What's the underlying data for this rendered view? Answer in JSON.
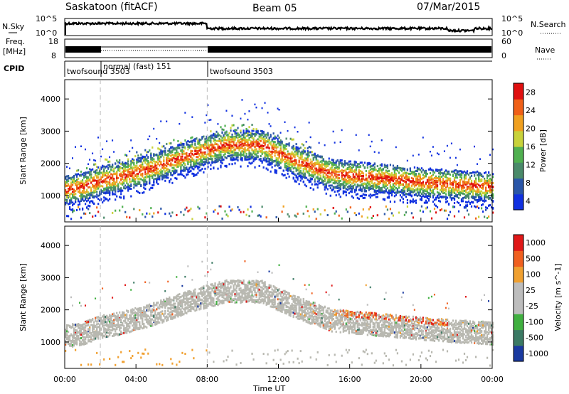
{
  "header": {
    "station": "Saskatoon (fitACF)",
    "beam": "Beam 05",
    "date": "07/Mar/2015"
  },
  "status_panels": {
    "nsky_label": "N.Sky",
    "nsearch_label": "N.Search",
    "freq_label_line1": "Freq.",
    "freq_label_line2": "[MHz]",
    "nave_label": "Nave",
    "cpid_label": "CPID",
    "noise_ticks": [
      "10^5",
      "10^0"
    ],
    "noise_ticks_right": [
      "10^5",
      "10^0"
    ],
    "freq_ticks": [
      "18",
      "8"
    ],
    "nave_ticks": [
      "60",
      "0"
    ],
    "cpid_segments": [
      {
        "name": "twofsound 3503",
        "start_hour": 0,
        "end_hour": 2
      },
      {
        "name": "normal (fast) 151",
        "start_hour": 2,
        "end_hour": 8
      },
      {
        "name": "twofsound 3503",
        "start_hour": 8,
        "end_hour": 24
      }
    ]
  },
  "colors": {
    "power_scale": [
      "#1030e0",
      "#2a56a8",
      "#4a8a6a",
      "#50b050",
      "#c8d23a",
      "#f0a020",
      "#f06018",
      "#e01010"
    ],
    "velocity_scale": [
      "#e01818",
      "#f06020",
      "#f0a030",
      "#bdbdbd",
      "#bdbdbd",
      "#40b040",
      "#3b7a64",
      "#1a3aa0"
    ],
    "gs_grey": "#b8b8b0"
  },
  "chart_data": [
    {
      "type": "heatmap",
      "panel": "power",
      "ylabel": "Slant Range [km]",
      "xlabel": "",
      "colorbar_label": "Power [dB]",
      "colorbar_ticks": [
        "28",
        "24",
        "20",
        "16",
        "12",
        "8",
        "4"
      ],
      "colorbar_range": [
        0,
        30
      ],
      "ylim": [
        180,
        4600
      ],
      "yticks": [
        "4000",
        "3000",
        "2000",
        "1000"
      ],
      "xlim": [
        0,
        24
      ],
      "backscatter_bands": [
        {
          "feature": "main_band",
          "start_hour": 0,
          "end_hour": 24,
          "center_km": [
            1200,
            1300,
            1500,
            1600,
            1900,
            2300,
            2600,
            2600,
            2100,
            1700,
            1600,
            1500,
            1400,
            1300
          ],
          "hours": [
            0,
            1,
            2,
            3,
            5,
            7,
            9,
            11,
            13,
            15,
            17,
            19,
            21,
            24
          ],
          "typical_power_db": 20
        }
      ]
    },
    {
      "type": "heatmap",
      "panel": "velocity",
      "ylabel": "Slant Range [km]",
      "xlabel": "Time UT",
      "colorbar_label": "Velocity [m s^-1]",
      "colorbar_ticks": [
        "1000",
        "500",
        "100",
        "25",
        "-25",
        "-100",
        "-500",
        "-1000"
      ],
      "ylim": [
        180,
        4600
      ],
      "yticks": [
        "4000",
        "3000",
        "2000",
        "1000"
      ],
      "xlim": [
        0,
        24
      ],
      "xticks": [
        "00:00",
        "04:00",
        "08:00",
        "12:00",
        "16:00",
        "20:00",
        "00:00"
      ]
    }
  ]
}
